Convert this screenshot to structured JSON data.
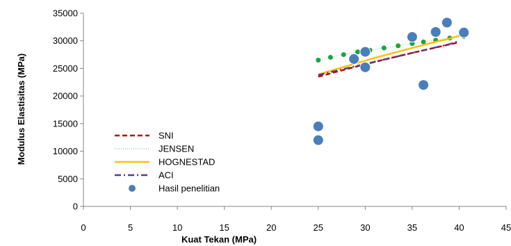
{
  "chart_data": {
    "type": "scatter",
    "title": "",
    "xlabel": "Kuat Tekan (MPa)",
    "ylabel": "Modulus Elastisitas (MPa)",
    "xlim": [
      0,
      45
    ],
    "ylim": [
      0,
      35000
    ],
    "xticks": [
      0,
      5,
      10,
      15,
      20,
      25,
      30,
      35,
      40,
      45
    ],
    "yticks": [
      0,
      5000,
      10000,
      15000,
      20000,
      25000,
      30000,
      35000
    ],
    "grid": "none",
    "legend": "left-bottom inside",
    "series": [
      {
        "name": "SNI",
        "style": "dashed",
        "color": "#C00000",
        "x": [
          25,
          27,
          29,
          31,
          33,
          35,
          37,
          39,
          40
        ],
        "y": [
          23500,
          24419,
          25310,
          26167,
          27000,
          27806,
          28589,
          29351,
          29725
        ]
      },
      {
        "name": "JENSEN",
        "style": "dotted",
        "color": "#1aa53c",
        "x": [
          25,
          26.3,
          27.7,
          29.2,
          30.5,
          32,
          33.5,
          35,
          36.2,
          37.5,
          39,
          40.5
        ],
        "y": [
          26500,
          27000,
          27500,
          28000,
          28300,
          28700,
          29100,
          29500,
          29800,
          30100,
          30500,
          30800
        ]
      },
      {
        "name": "HOGNESTAD",
        "style": "solid",
        "color": "#FFC000",
        "x": [
          25,
          27,
          29,
          31,
          33,
          35,
          37,
          39,
          40.5
        ],
        "y": [
          23900,
          24900,
          25900,
          26900,
          27800,
          28700,
          29600,
          30400,
          31200
        ]
      },
      {
        "name": "ACI",
        "style": "dash-dot",
        "color": "#5B3A7D",
        "x": [
          25,
          27,
          29,
          31,
          33,
          35,
          37,
          39,
          40
        ],
        "y": [
          23800,
          24600,
          25400,
          26200,
          27000,
          27800,
          28600,
          29400,
          30000
        ]
      },
      {
        "name": "Hasil penelitian",
        "style": "marker",
        "color": "#4A7EBB",
        "x": [
          25,
          25,
          28.8,
          30,
          30,
          35,
          36.2,
          37.5,
          38.7,
          40.5
        ],
        "y": [
          12000,
          14500,
          26700,
          28000,
          25200,
          30700,
          22000,
          31600,
          33300,
          31500
        ]
      }
    ]
  }
}
